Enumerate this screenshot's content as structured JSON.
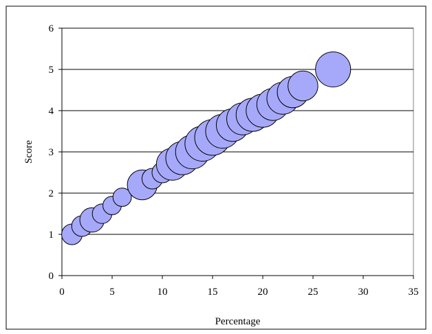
{
  "chart_data": {
    "type": "bubble",
    "title": "",
    "xlabel": "Percentage",
    "ylabel": "Score",
    "xlim": [
      0,
      35
    ],
    "ylim": [
      0,
      6
    ],
    "xticks": [
      0,
      5,
      10,
      15,
      20,
      25,
      30,
      35
    ],
    "yticks": [
      0,
      1,
      2,
      3,
      4,
      5,
      6
    ],
    "grid": "horizontal major lines",
    "legend": "none",
    "colors": {
      "bubble_fill": "#A6A9FA",
      "bubble_stroke": "#000000",
      "plot_background": "#FFFFFF",
      "grid": "#000000"
    },
    "series": [
      {
        "points": [
          {
            "x": 1,
            "y": 1.0,
            "size": 1.0
          },
          {
            "x": 2,
            "y": 1.2,
            "size": 1.0
          },
          {
            "x": 3,
            "y": 1.35,
            "size": 1.4
          },
          {
            "x": 4,
            "y": 1.5,
            "size": 0.9
          },
          {
            "x": 5,
            "y": 1.7,
            "size": 0.8
          },
          {
            "x": 6,
            "y": 1.9,
            "size": 0.8
          },
          {
            "x": 8,
            "y": 2.2,
            "size": 2.1
          },
          {
            "x": 9,
            "y": 2.35,
            "size": 1.0
          },
          {
            "x": 10,
            "y": 2.5,
            "size": 1.0
          },
          {
            "x": 11,
            "y": 2.7,
            "size": 2.4
          },
          {
            "x": 12,
            "y": 2.85,
            "size": 2.6
          },
          {
            "x": 13,
            "y": 3.0,
            "size": 2.7
          },
          {
            "x": 14,
            "y": 3.2,
            "size": 2.9
          },
          {
            "x": 15,
            "y": 3.35,
            "size": 3.0
          },
          {
            "x": 16,
            "y": 3.5,
            "size": 2.7
          },
          {
            "x": 17,
            "y": 3.65,
            "size": 2.5
          },
          {
            "x": 18,
            "y": 3.8,
            "size": 2.4
          },
          {
            "x": 19,
            "y": 3.9,
            "size": 2.6
          },
          {
            "x": 20,
            "y": 4.0,
            "size": 2.6
          },
          {
            "x": 21,
            "y": 4.15,
            "size": 2.4
          },
          {
            "x": 22,
            "y": 4.3,
            "size": 2.4
          },
          {
            "x": 23,
            "y": 4.45,
            "size": 2.3
          },
          {
            "x": 24,
            "y": 4.6,
            "size": 2.1
          },
          {
            "x": 27,
            "y": 5.0,
            "size": 2.9
          }
        ]
      }
    ]
  }
}
